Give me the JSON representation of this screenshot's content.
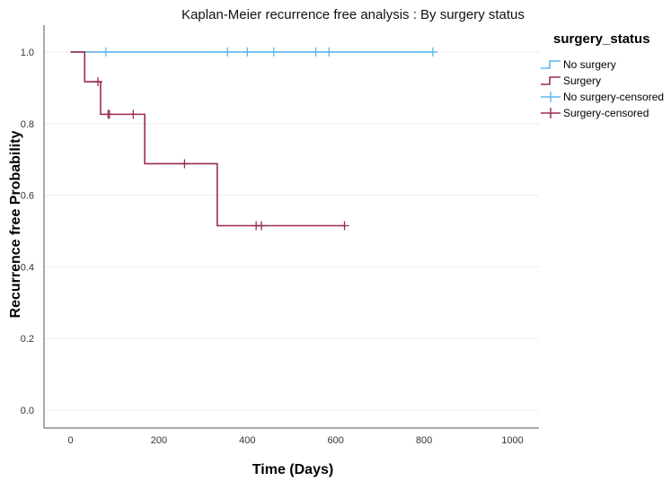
{
  "chart_data": {
    "type": "line",
    "subtype": "kaplan-meier-step",
    "title": "Kaplan-Meier recurrence free analysis : By surgery status",
    "xlabel": "Time (Days)",
    "ylabel": "Recurrence free Probability",
    "xlim": [
      -60,
      1060
    ],
    "ylim": [
      -0.05,
      1.075
    ],
    "xticks": [
      0,
      200,
      400,
      600,
      800,
      1000
    ],
    "yticks": [
      0.0,
      0.2,
      0.4,
      0.6,
      0.8,
      1.0
    ],
    "xtick_labels": [
      "0",
      "200",
      "400",
      "600",
      "800",
      "1000"
    ],
    "ytick_labels": [
      "0.0",
      "0.2",
      "0.4",
      "0.6",
      "0.8",
      "1.0"
    ],
    "grid": "horizontal",
    "legend": {
      "title": "surgery_status",
      "position": "right",
      "entries": [
        "No surgery",
        "Surgery",
        "No surgery-censored",
        "Surgery-censored"
      ]
    },
    "series": [
      {
        "name": "No surgery",
        "color": "#5bb7e8",
        "step_points": [
          [
            0,
            1.0
          ],
          [
            820,
            1.0
          ]
        ],
        "censored_name": "No surgery-censored",
        "censored": [
          [
            80,
            1.0
          ],
          [
            355,
            1.0
          ],
          [
            400,
            1.0
          ],
          [
            460,
            1.0
          ],
          [
            555,
            1.0
          ],
          [
            585,
            1.0
          ],
          [
            820,
            1.0
          ]
        ]
      },
      {
        "name": "Surgery",
        "color": "#9b2a52",
        "step_points": [
          [
            0,
            1.0
          ],
          [
            32,
            0.917
          ],
          [
            68,
            0.826
          ],
          [
            168,
            0.688
          ],
          [
            332,
            0.515
          ],
          [
            620,
            0.515
          ]
        ],
        "censored_name": "Surgery-censored",
        "censored": [
          [
            62,
            0.917
          ],
          [
            85,
            0.826
          ],
          [
            88,
            0.826
          ],
          [
            142,
            0.826
          ],
          [
            258,
            0.688
          ],
          [
            420,
            0.515
          ],
          [
            432,
            0.515
          ],
          [
            620,
            0.515
          ]
        ]
      }
    ]
  }
}
